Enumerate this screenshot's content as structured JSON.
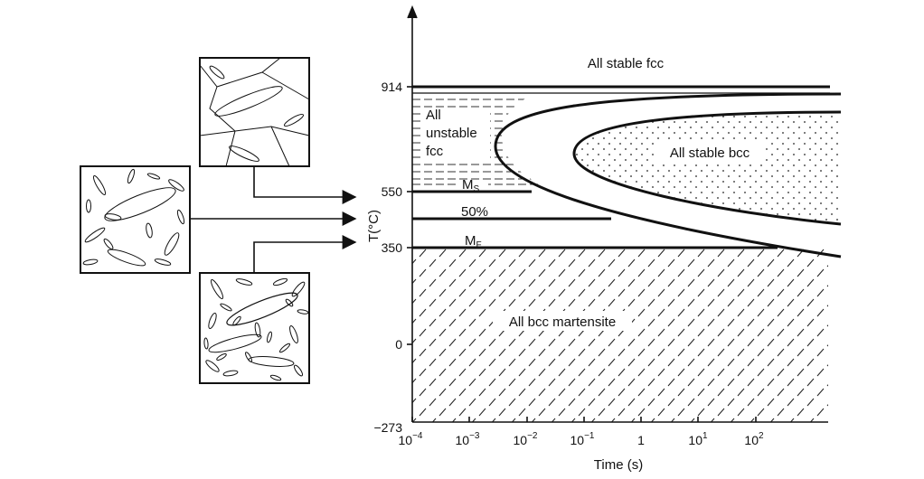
{
  "diagram": {
    "xlabel": "Time (s)",
    "ylabel": "T(°C)",
    "x_ticks": [
      {
        "base": "10",
        "exp": "−4"
      },
      {
        "base": "10",
        "exp": "−3"
      },
      {
        "base": "10",
        "exp": "−2"
      },
      {
        "base": "10",
        "exp": "−1"
      },
      {
        "base": "1",
        "exp": ""
      },
      {
        "base": "10",
        "exp": "1"
      },
      {
        "base": "10",
        "exp": "2"
      }
    ],
    "y_ticks": [
      "914",
      "550",
      "350",
      "0",
      "−273"
    ],
    "y_tick_values": [
      914,
      550,
      350,
      0,
      -273
    ],
    "regions": {
      "fcc_stable": "All stable fcc",
      "unstable_1": "All",
      "unstable_2": "unstable",
      "unstable_3": "fcc",
      "bcc_stable": "All stable bcc",
      "martensite": "All bcc martensite"
    },
    "lines": {
      "ms": "M",
      "ms_sub": "S",
      "fifty": "50%",
      "mf": "M",
      "mf_sub": "F"
    }
  }
}
